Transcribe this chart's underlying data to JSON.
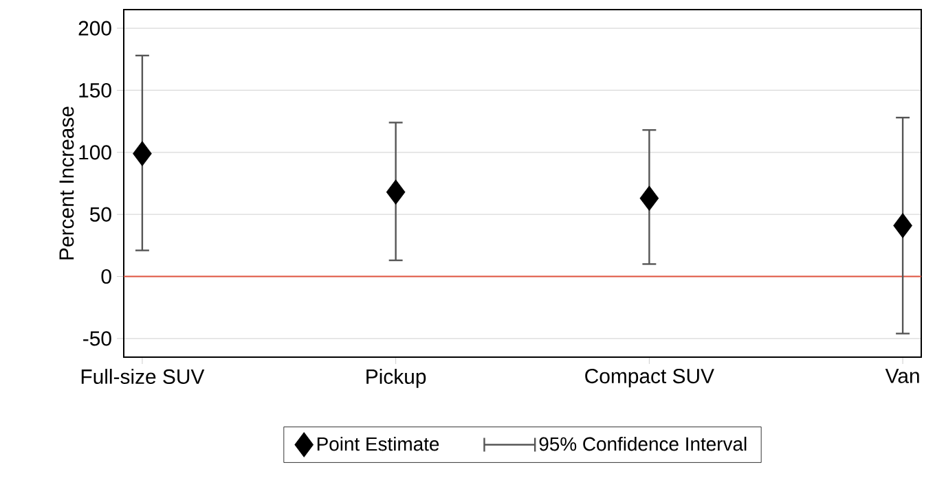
{
  "chart_data": {
    "type": "scatter",
    "ylabel": "Percent Increase",
    "categories": [
      "Full-size SUV",
      "Pickup",
      "Compact SUV",
      "Van"
    ],
    "series": [
      {
        "name": "Point Estimate",
        "color": "#000000",
        "marker": "diamond",
        "values": [
          99,
          68,
          63,
          41
        ],
        "errors": [
          [
            21,
            178
          ],
          [
            13,
            124
          ],
          [
            10,
            118
          ],
          [
            -46,
            128
          ]
        ]
      }
    ],
    "annotations": [
      "95% Confidence Interval"
    ],
    "ylim": [
      -65,
      215
    ],
    "yticks": [
      -50,
      0,
      50,
      100,
      150,
      200
    ],
    "grid": "y",
    "legend": "bottom",
    "ref_lines": [
      {
        "axis": "y",
        "value": 0,
        "color": "#e0533f"
      }
    ]
  }
}
